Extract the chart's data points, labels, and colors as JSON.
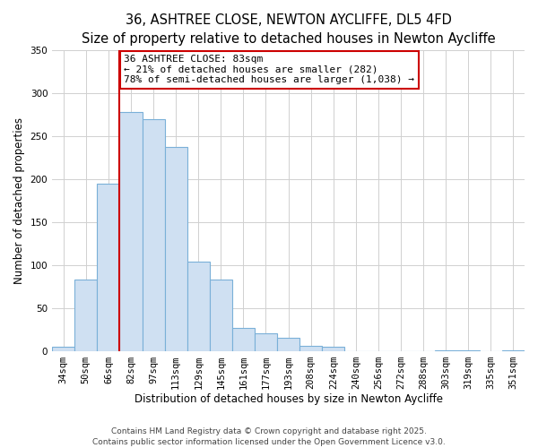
{
  "title": "36, ASHTREE CLOSE, NEWTON AYCLIFFE, DL5 4FD",
  "subtitle": "Size of property relative to detached houses in Newton Aycliffe",
  "xlabel": "Distribution of detached houses by size in Newton Aycliffe",
  "ylabel": "Number of detached properties",
  "categories": [
    "34sqm",
    "50sqm",
    "66sqm",
    "82sqm",
    "97sqm",
    "113sqm",
    "129sqm",
    "145sqm",
    "161sqm",
    "177sqm",
    "193sqm",
    "208sqm",
    "224sqm",
    "240sqm",
    "256sqm",
    "272sqm",
    "288sqm",
    "303sqm",
    "319sqm",
    "335sqm",
    "351sqm"
  ],
  "values": [
    5,
    83,
    195,
    278,
    270,
    238,
    104,
    83,
    27,
    20,
    15,
    6,
    5,
    0,
    0,
    0,
    0,
    1,
    1,
    0,
    1
  ],
  "bar_color": "#cfe0f2",
  "bar_edge_color": "#7ab0d8",
  "bar_width": 1.0,
  "vline_index": 3,
  "vline_color": "#cc0000",
  "annotation_title": "36 ASHTREE CLOSE: 83sqm",
  "annotation_line1": "← 21% of detached houses are smaller (282)",
  "annotation_line2": "78% of semi-detached houses are larger (1,038) →",
  "annotation_box_color": "#ffffff",
  "annotation_box_edge": "#cc0000",
  "ylim": [
    0,
    350
  ],
  "yticks": [
    0,
    50,
    100,
    150,
    200,
    250,
    300,
    350
  ],
  "footnote1": "Contains HM Land Registry data © Crown copyright and database right 2025.",
  "footnote2": "Contains public sector information licensed under the Open Government Licence v3.0.",
  "bg_color": "#ffffff",
  "grid_color": "#d0d0d0",
  "title_fontsize": 10.5,
  "subtitle_fontsize": 9,
  "axis_label_fontsize": 8.5,
  "tick_fontsize": 7.5,
  "annotation_fontsize": 8,
  "footnote_fontsize": 6.5
}
